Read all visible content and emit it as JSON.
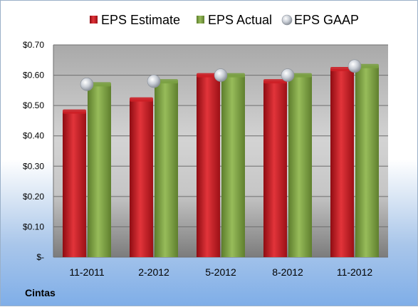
{
  "company": "Cintas",
  "chart_data": {
    "type": "bar",
    "categories": [
      "11-2011",
      "2-2012",
      "5-2012",
      "8-2012",
      "11-2012"
    ],
    "series": [
      {
        "name": "EPS Estimate",
        "kind": "bar",
        "color": "#cc1f26",
        "values": [
          0.48,
          0.52,
          0.6,
          0.58,
          0.62
        ]
      },
      {
        "name": "EPS Actual",
        "kind": "bar",
        "color": "#7aa043",
        "values": [
          0.57,
          0.58,
          0.6,
          0.6,
          0.63
        ]
      },
      {
        "name": "EPS GAAP",
        "kind": "marker",
        "color": "#c8ccd2",
        "values": [
          0.57,
          0.58,
          0.6,
          0.6,
          0.63
        ]
      }
    ],
    "ylim": [
      0,
      0.7
    ],
    "yticks": [
      0,
      0.1,
      0.2,
      0.3,
      0.4,
      0.5,
      0.6,
      0.7
    ],
    "ytick_labels": [
      "$-",
      "$0.10",
      "$0.20",
      "$0.30",
      "$0.40",
      "$0.50",
      "$0.60",
      "$0.70"
    ],
    "grid": true,
    "legend_position": "top"
  }
}
